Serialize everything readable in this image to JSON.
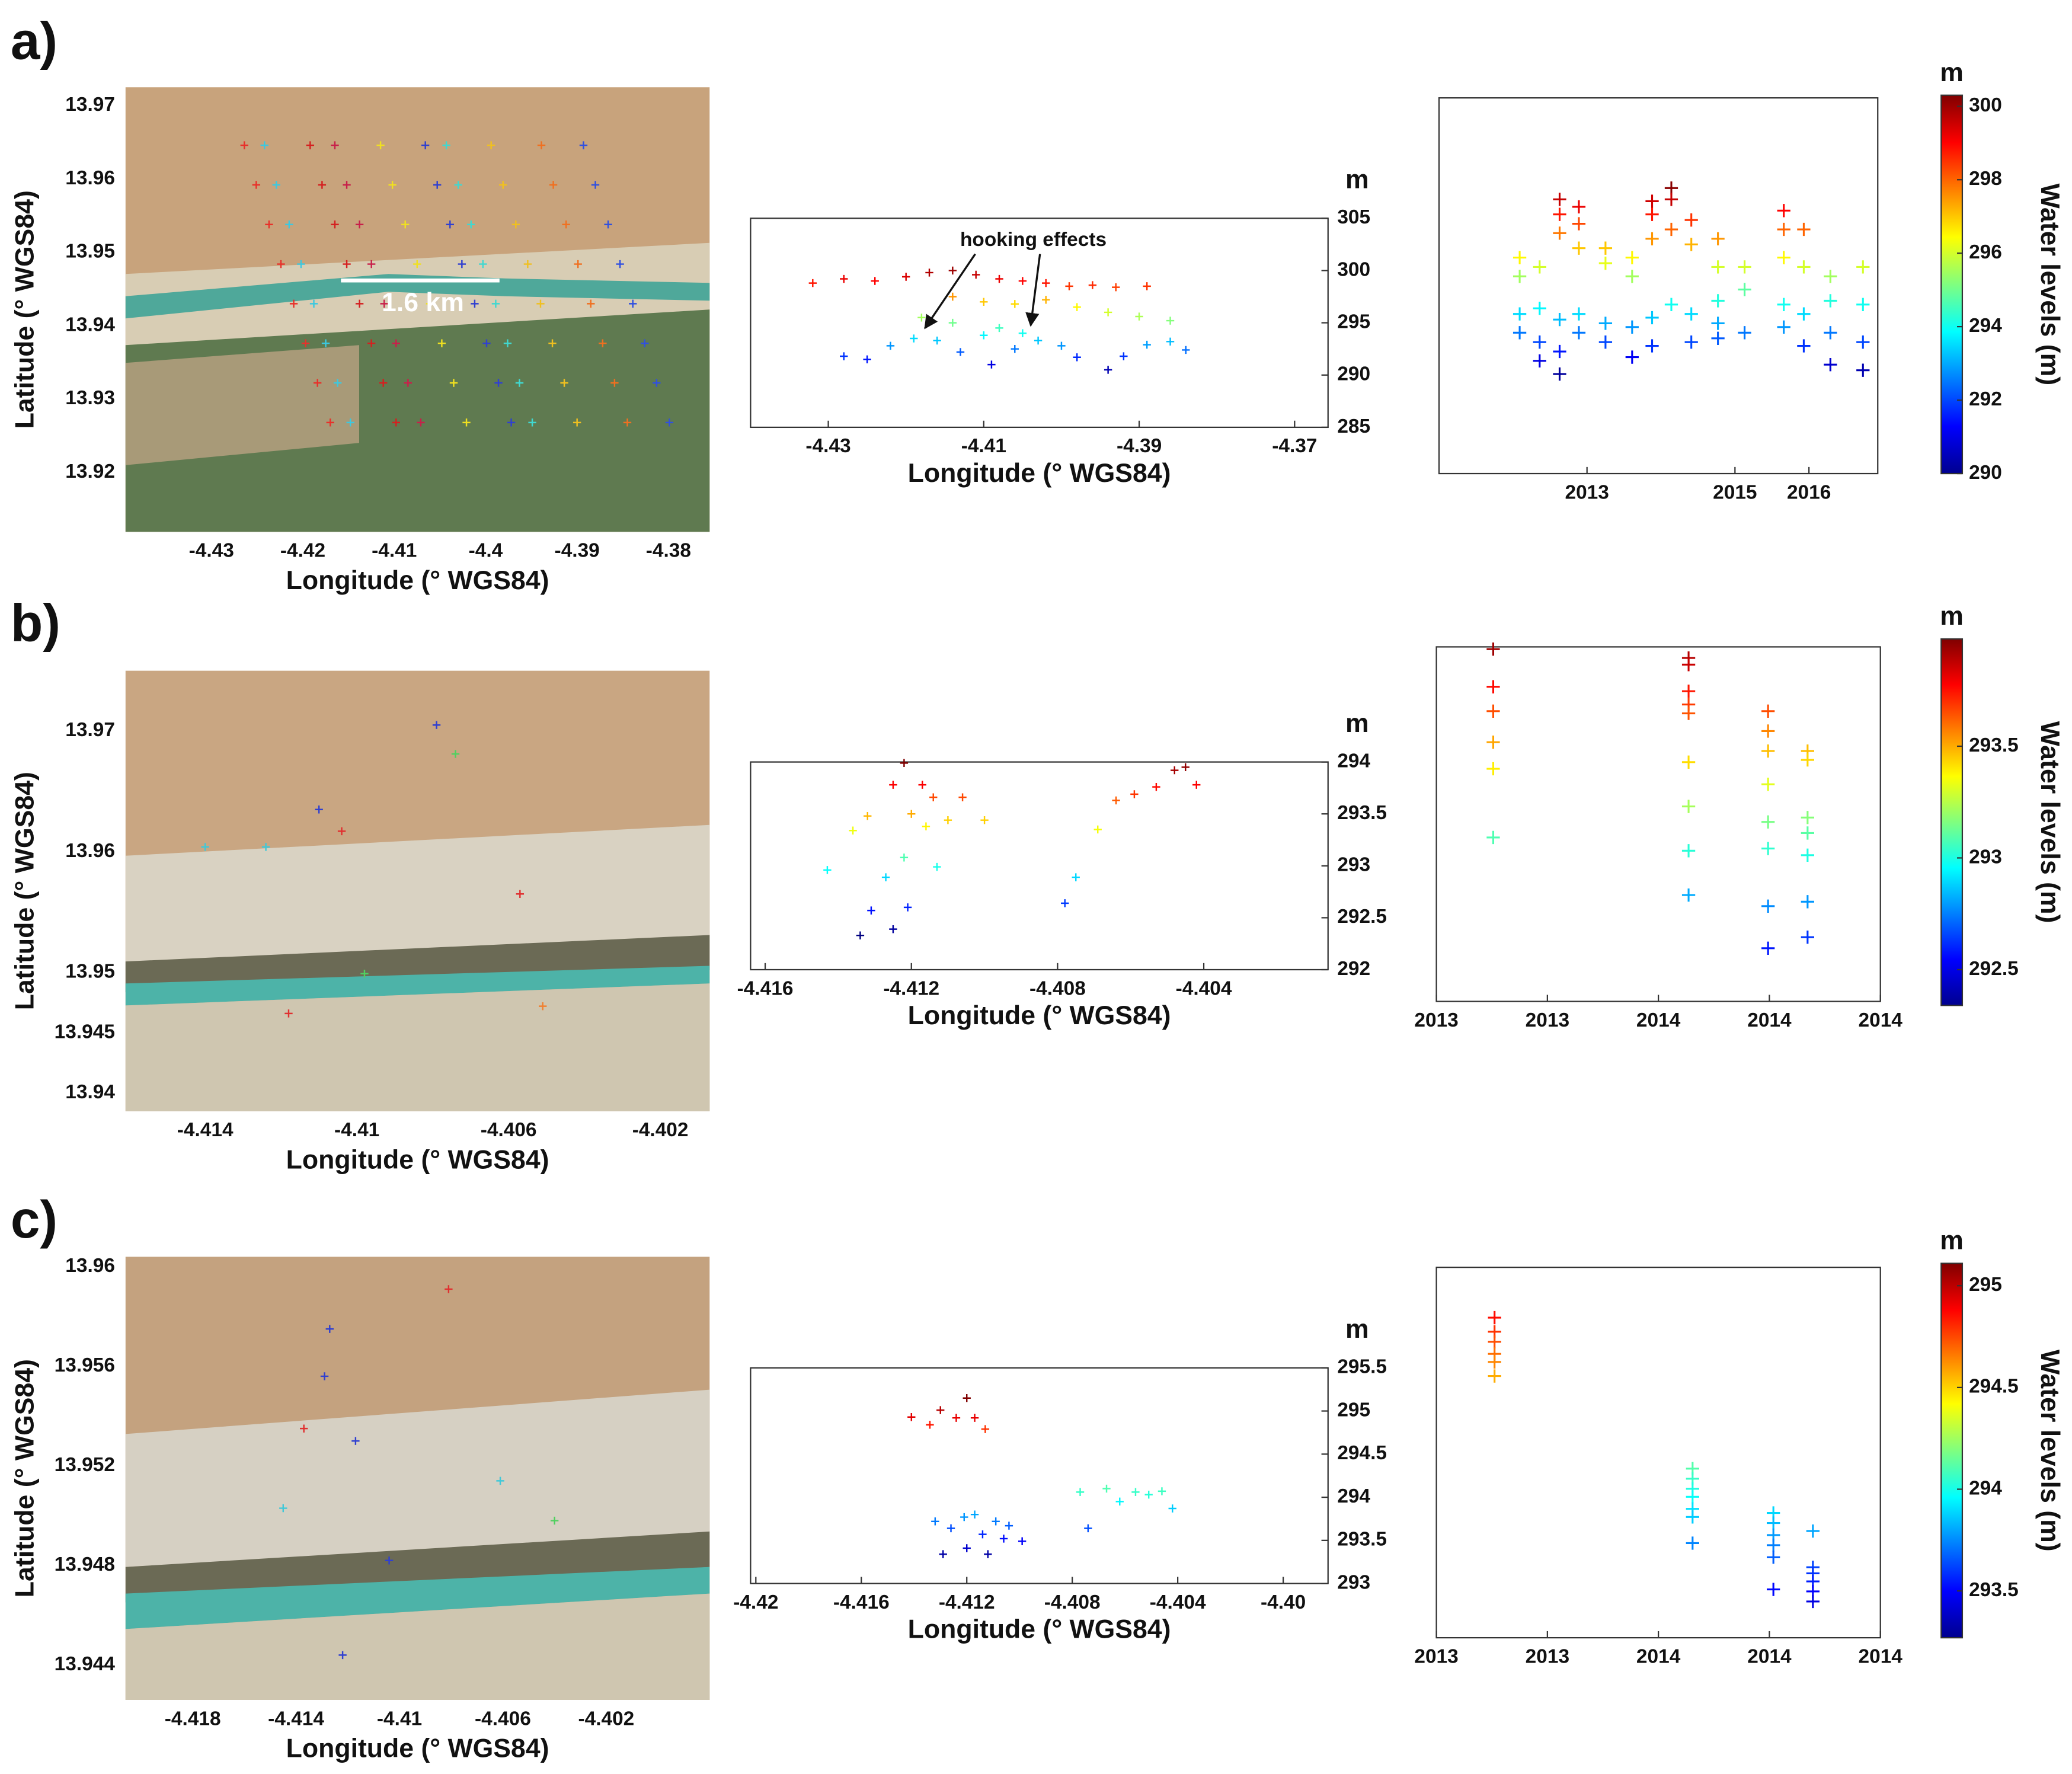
{
  "panel_labels": [
    "a)",
    "b)",
    "c)"
  ],
  "chart_data": [
    {
      "type": "map",
      "xlabel": "Longitude (° WGS84)",
      "ylabel": "Latitude (° WGS84)",
      "annotation": "1.6 km",
      "xlim": [
        -4.4394,
        -4.3755
      ],
      "ylim": [
        13.9119,
        13.9725
      ],
      "xticks": [
        -4.43,
        -4.42,
        -4.41,
        -4.4,
        -4.39,
        -4.38
      ],
      "yticks": [
        13.92,
        13.93,
        13.94,
        13.95,
        13.96,
        13.97
      ],
      "series": [
        {
          "color": "#e8312a",
          "x": [
            -4.4264,
            -4.4251,
            -4.4237,
            -4.4224,
            -4.421,
            -4.4197,
            -4.4184,
            -4.417
          ],
          "values": [
            13.9646,
            13.9592,
            13.9538,
            13.9484,
            13.943,
            13.9376,
            13.9322,
            13.9268
          ]
        },
        {
          "color": "#3cc8e0",
          "x": [
            -4.4242,
            -4.4229,
            -4.4215,
            -4.4202,
            -4.4188,
            -4.4175,
            -4.4162,
            -4.4148
          ],
          "values": [
            13.9646,
            13.9592,
            13.9538,
            13.9484,
            13.943,
            13.9376,
            13.9322,
            13.9268
          ]
        },
        {
          "color": "#d42020",
          "x": [
            -4.4192,
            -4.4179,
            -4.4165,
            -4.4152,
            -4.4138,
            -4.4125,
            -4.4112,
            -4.4098
          ],
          "values": [
            13.9646,
            13.9592,
            13.9538,
            13.9484,
            13.943,
            13.9376,
            13.9322,
            13.9268
          ]
        },
        {
          "color": "#c8204a",
          "x": [
            -4.4165,
            -4.4152,
            -4.4138,
            -4.4125,
            -4.4111,
            -4.4098,
            -4.4085,
            -4.4071
          ],
          "values": [
            13.9646,
            13.9592,
            13.9538,
            13.9484,
            13.943,
            13.9376,
            13.9322,
            13.9268
          ]
        },
        {
          "color": "#f0e020",
          "x": [
            -4.4115,
            -4.4102,
            -4.4088,
            -4.4075,
            -4.4061,
            -4.4048,
            -4.4035,
            -4.4021
          ],
          "values": [
            13.9646,
            13.9592,
            13.9538,
            13.9484,
            13.943,
            13.9376,
            13.9322,
            13.9268
          ]
        },
        {
          "color": "#3040d0",
          "x": [
            -4.4066,
            -4.4053,
            -4.4039,
            -4.4026,
            -4.4012,
            -4.3999,
            -4.3986,
            -4.3972
          ],
          "values": [
            13.9646,
            13.9592,
            13.9538,
            13.9484,
            13.943,
            13.9376,
            13.9322,
            13.9268
          ]
        },
        {
          "color": "#40d8d0",
          "x": [
            -4.4043,
            -4.403,
            -4.4016,
            -4.4003,
            -4.3989,
            -4.3976,
            -4.3963,
            -4.3949
          ],
          "values": [
            13.9646,
            13.9592,
            13.9538,
            13.9484,
            13.943,
            13.9376,
            13.9322,
            13.9268
          ]
        },
        {
          "color": "#f0c020",
          "x": [
            -4.3994,
            -4.3981,
            -4.3967,
            -4.3954,
            -4.394,
            -4.3927,
            -4.3914,
            -4.39
          ],
          "values": [
            13.9646,
            13.9592,
            13.9538,
            13.9484,
            13.943,
            13.9376,
            13.9322,
            13.9268
          ]
        },
        {
          "color": "#f07020",
          "x": [
            -4.3939,
            -4.3926,
            -4.3912,
            -4.3899,
            -4.3885,
            -4.3872,
            -4.3859,
            -4.3845
          ],
          "values": [
            13.9646,
            13.9592,
            13.9538,
            13.9484,
            13.943,
            13.9376,
            13.9322,
            13.9268
          ]
        },
        {
          "color": "#3050e0",
          "x": [
            -4.3893,
            -4.388,
            -4.3866,
            -4.3853,
            -4.3839,
            -4.3826,
            -4.3813,
            -4.3799
          ],
          "values": [
            13.9646,
            13.9592,
            13.9538,
            13.9484,
            13.943,
            13.9376,
            13.9322,
            13.9268
          ]
        }
      ]
    },
    {
      "type": "scatter",
      "xlabel": "Longitude (° WGS84)",
      "ylabel": "m",
      "yaxis_side": "right",
      "annotation": "hooking effects",
      "colormap": "jet",
      "clim": [
        290,
        300.3
      ],
      "xlim": [
        -4.44,
        -4.3657
      ],
      "ylim": [
        285,
        305
      ],
      "xticks": [
        -4.43,
        -4.41,
        -4.39,
        -4.37
      ],
      "yticks": [
        285,
        290,
        295,
        300,
        305
      ],
      "x": [
        -4.432,
        -4.428,
        -4.424,
        -4.42,
        -4.417,
        -4.414,
        -4.411,
        -4.408,
        -4.405,
        -4.402,
        -4.399,
        -4.396,
        -4.393,
        -4.389,
        -4.414,
        -4.41,
        -4.406,
        -4.402,
        -4.398,
        -4.394,
        -4.39,
        -4.386,
        -4.418,
        -4.414,
        -4.408,
        -4.405,
        -4.425,
        -4.422,
        -4.419,
        -4.416,
        -4.413,
        -4.409,
        -4.406,
        -4.403,
        -4.4,
        -4.398,
        -4.394,
        -4.392,
        -4.389,
        -4.386,
        -4.384,
        -4.428,
        -4.41
      ],
      "values": [
        298.8,
        299.2,
        299.0,
        299.4,
        299.8,
        300.0,
        299.6,
        299.2,
        299.0,
        298.8,
        298.5,
        298.6,
        298.4,
        298.5,
        297.5,
        297.0,
        296.8,
        297.2,
        296.5,
        296.0,
        295.6,
        295.2,
        295.5,
        295.0,
        294.5,
        294.0,
        291.5,
        292.8,
        293.5,
        293.3,
        292.2,
        291.0,
        292.5,
        293.3,
        292.8,
        291.7,
        290.5,
        291.8,
        292.9,
        293.2,
        292.4,
        291.8,
        293.8
      ]
    },
    {
      "type": "scatter",
      "colormap": "jet",
      "clim": [
        290,
        300.3
      ],
      "xlim": [
        2011,
        2016.93
      ],
      "ylim": [
        285,
        305
      ],
      "xticks": [
        2013,
        2015,
        2016
      ],
      "colorbar": {
        "title": "m",
        "label": "Water levels (m)",
        "lim": [
          290,
          300.3
        ],
        "ticks": [
          290,
          292,
          294,
          296,
          298,
          300
        ]
      },
      "x": [
        2012.09,
        2012.09,
        2012.09,
        2012.09,
        2012.36,
        2012.36,
        2012.36,
        2012.36,
        2012.63,
        2012.63,
        2012.63,
        2012.63,
        2012.63,
        2012.63,
        2012.89,
        2012.89,
        2012.89,
        2012.89,
        2012.89,
        2013.25,
        2013.25,
        2013.25,
        2013.25,
        2013.61,
        2013.61,
        2013.61,
        2013.61,
        2013.88,
        2013.88,
        2013.88,
        2013.88,
        2013.88,
        2014.14,
        2014.14,
        2014.14,
        2014.14,
        2014.41,
        2014.41,
        2014.41,
        2014.41,
        2014.77,
        2014.77,
        2014.77,
        2014.77,
        2014.77,
        2015.13,
        2015.13,
        2015.13,
        2015.66,
        2015.66,
        2015.66,
        2015.66,
        2015.66,
        2015.93,
        2015.93,
        2015.93,
        2015.93,
        2016.29,
        2016.29,
        2016.29,
        2016.29,
        2016.73,
        2016.73,
        2016.73,
        2016.73
      ],
      "values": [
        296.5,
        295.5,
        293.5,
        292.5,
        296.0,
        293.8,
        292.0,
        291.0,
        299.6,
        298.8,
        297.8,
        293.2,
        291.5,
        290.3,
        299.2,
        298.3,
        297.0,
        293.5,
        292.5,
        297.0,
        296.2,
        293.0,
        292.0,
        296.5,
        295.5,
        292.8,
        291.2,
        299.5,
        298.8,
        297.5,
        293.3,
        291.8,
        300.2,
        299.6,
        298.0,
        294.0,
        298.5,
        297.2,
        293.5,
        292.0,
        297.5,
        296.0,
        294.2,
        293.0,
        292.2,
        296.0,
        294.8,
        292.5,
        299.0,
        298.0,
        296.5,
        294.0,
        292.8,
        298.0,
        296.0,
        293.5,
        291.8,
        295.5,
        294.2,
        292.5,
        290.8,
        296.0,
        294.0,
        292.0,
        290.5
      ]
    },
    {
      "type": "map",
      "xlabel": "Longitude (° WGS84)",
      "ylabel": "Latitude (° WGS84)",
      "xlim": [
        -4.4161,
        -4.4007
      ],
      "ylim": [
        13.9385,
        13.975
      ],
      "xticks": [
        -4.414,
        -4.41,
        -4.406,
        -4.402
      ],
      "yticks": [
        13.94,
        13.945,
        13.95,
        13.96,
        13.97
      ],
      "x": [
        -4.411,
        -4.4079,
        -4.4104,
        -4.4124,
        -4.4057,
        -4.4098,
        -4.4051,
        -4.4118,
        -4.414,
        -4.4074
      ],
      "values": [
        13.9635,
        13.9705,
        13.9617,
        13.9604,
        13.9565,
        13.9499,
        13.9472,
        13.9466,
        13.9604,
        13.9681
      ],
      "colors": [
        "#3040d0",
        "#3040d0",
        "#e03030",
        "#40c8d8",
        "#e03030",
        "#50d060",
        "#f08030",
        "#e03030",
        "#40c8d8",
        "#50d060"
      ]
    },
    {
      "type": "scatter",
      "xlabel": "Longitude (° WGS84)",
      "ylabel": "m",
      "yaxis_side": "right",
      "colormap": "jet",
      "clim": [
        292.34,
        293.98
      ],
      "xlim": [
        -4.4164,
        -4.4006
      ],
      "ylim": [
        292,
        294
      ],
      "xticks": [
        -4.416,
        -4.412,
        -4.408,
        -4.404
      ],
      "yticks": [
        292,
        292.5,
        293,
        293.5,
        294
      ],
      "x": [
        -4.4122,
        -4.4125,
        -4.4117,
        -4.4114,
        -4.4106,
        -4.4136,
        -4.4132,
        -4.412,
        -4.4116,
        -4.411,
        -4.41,
        -4.4143,
        -4.4127,
        -4.4122,
        -4.4113,
        -4.4131,
        -4.4121,
        -4.4134,
        -4.4125,
        -4.4078,
        -4.4075,
        -4.4069,
        -4.4064,
        -4.4059,
        -4.4053,
        -4.4048,
        -4.4045,
        -4.4042
      ],
      "values": [
        293.99,
        293.78,
        293.78,
        293.66,
        293.66,
        293.34,
        293.48,
        293.5,
        293.38,
        293.44,
        293.44,
        292.96,
        292.89,
        293.08,
        292.99,
        292.57,
        292.6,
        292.33,
        292.39,
        292.64,
        292.89,
        293.35,
        293.63,
        293.69,
        293.76,
        293.92,
        293.95,
        293.78
      ]
    },
    {
      "type": "scatter",
      "colormap": "jet",
      "clim": [
        292.34,
        293.98
      ],
      "xlim": [
        2013,
        2014
      ],
      "ylim": [
        292.34,
        293.94
      ],
      "xticks": [
        2013,
        {
          "value": 2013.25,
          "label": "2013"
        },
        {
          "value": 2013.5,
          "label": "2014"
        },
        {
          "value": 2013.75,
          "label": "2014"
        },
        2014
      ],
      "colorbar": {
        "title": "m",
        "label": "Water levels (m)",
        "lim": [
          292.34,
          293.98
        ],
        "ticks": [
          292.5,
          293,
          293.5
        ]
      },
      "x": [
        2013.128,
        2013.128,
        2013.128,
        2013.128,
        2013.128,
        2013.128,
        2013.568,
        2013.568,
        2013.568,
        2013.568,
        2013.568,
        2013.568,
        2013.568,
        2013.568,
        2013.568,
        2013.747,
        2013.747,
        2013.747,
        2013.747,
        2013.747,
        2013.747,
        2013.747,
        2013.747,
        2013.836,
        2013.836,
        2013.836,
        2013.836,
        2013.836,
        2013.836,
        2013.836
      ],
      "values": [
        293.93,
        293.76,
        293.65,
        293.51,
        293.39,
        293.08,
        293.89,
        293.86,
        293.74,
        293.68,
        293.64,
        293.42,
        293.22,
        293.02,
        292.82,
        293.65,
        293.56,
        293.47,
        293.32,
        293.15,
        293.03,
        292.77,
        292.58,
        293.47,
        293.43,
        293.17,
        293.1,
        293.0,
        292.79,
        292.63
      ]
    },
    {
      "type": "map",
      "xlabel": "Longitude (° WGS84)",
      "ylabel": "Latitude (° WGS84)",
      "xlim": [
        -4.4206,
        -4.398
      ],
      "ylim": [
        13.9426,
        13.9604
      ],
      "xticks": [
        -4.418,
        -4.414,
        -4.41,
        -4.406,
        -4.402
      ],
      "yticks": [
        13.944,
        13.948,
        13.952,
        13.956,
        13.96
      ],
      "x": [
        -4.4129,
        -4.4127,
        -4.4137,
        -4.4117,
        -4.4145,
        -4.4104,
        -4.4061,
        -4.4122,
        -4.4081,
        -4.404
      ],
      "values": [
        13.9556,
        13.9575,
        13.9535,
        13.953,
        13.9503,
        13.9482,
        13.9514,
        13.9444,
        13.9591,
        13.9498
      ],
      "colors": [
        "#3040d0",
        "#3040d0",
        "#e03030",
        "#3040d0",
        "#40c8d8",
        "#3040d0",
        "#40c8d8",
        "#3040d0",
        "#e03030",
        "#50d060"
      ]
    },
    {
      "type": "scatter",
      "xlabel": "Longitude (° WGS84)",
      "ylabel": "m",
      "yaxis_side": "right",
      "colormap": "jet",
      "clim": [
        293.27,
        295.11
      ],
      "xlim": [
        -4.4202,
        -4.3983
      ],
      "ylim": [
        293,
        295.5
      ],
      "xticks": [
        -4.42,
        -4.416,
        -4.412,
        -4.408,
        -4.404,
        {
          "value": -4.4,
          "label": "-4.40"
        }
      ],
      "yticks": [
        293,
        293.5,
        294,
        294.5,
        295,
        295.5
      ],
      "x": [
        -4.4141,
        -4.4134,
        -4.413,
        -4.4124,
        -4.412,
        -4.4117,
        -4.4113,
        -4.4132,
        -4.4126,
        -4.4121,
        -4.4117,
        -4.4114,
        -4.4109,
        -4.4104,
        -4.4099,
        -4.4129,
        -4.412,
        -4.4112,
        -4.4106,
        -4.4077,
        -4.4074,
        -4.4067,
        -4.4062,
        -4.4056,
        -4.4051,
        -4.4046,
        -4.4042
      ],
      "values": [
        294.93,
        294.84,
        295.01,
        294.92,
        295.15,
        294.92,
        294.79,
        293.72,
        293.64,
        293.77,
        293.8,
        293.57,
        293.72,
        293.67,
        293.49,
        293.34,
        293.41,
        293.34,
        293.52,
        294.06,
        293.64,
        294.1,
        293.95,
        294.06,
        294.03,
        294.07,
        293.87
      ]
    },
    {
      "type": "scatter",
      "colormap": "jet",
      "clim": [
        293.27,
        295.11
      ],
      "xlim": [
        2013,
        2014
      ],
      "ylim": [
        293.27,
        295.11
      ],
      "xticks": [
        2013,
        {
          "value": 2013.25,
          "label": "2013"
        },
        {
          "value": 2013.5,
          "label": "2014"
        },
        {
          "value": 2013.75,
          "label": "2014"
        },
        2014
      ],
      "colorbar": {
        "title": "m",
        "label": "Water levels (m)",
        "lim": [
          293.27,
          295.11
        ],
        "ticks": [
          293.5,
          294,
          294.5,
          295
        ]
      },
      "x": [
        2013.131,
        2013.131,
        2013.131,
        2013.131,
        2013.131,
        2013.131,
        2013.577,
        2013.577,
        2013.577,
        2013.577,
        2013.577,
        2013.577,
        2013.577,
        2013.759,
        2013.759,
        2013.759,
        2013.759,
        2013.759,
        2013.759,
        2013.848,
        2013.848,
        2013.848,
        2013.848,
        2013.848,
        2013.848
      ],
      "values": [
        294.86,
        294.79,
        294.74,
        294.68,
        294.64,
        294.57,
        294.11,
        294.06,
        294.01,
        293.97,
        293.91,
        293.87,
        293.74,
        293.89,
        293.84,
        293.78,
        293.73,
        293.67,
        293.51,
        293.8,
        293.62,
        293.59,
        293.55,
        293.5,
        293.45
      ]
    }
  ]
}
